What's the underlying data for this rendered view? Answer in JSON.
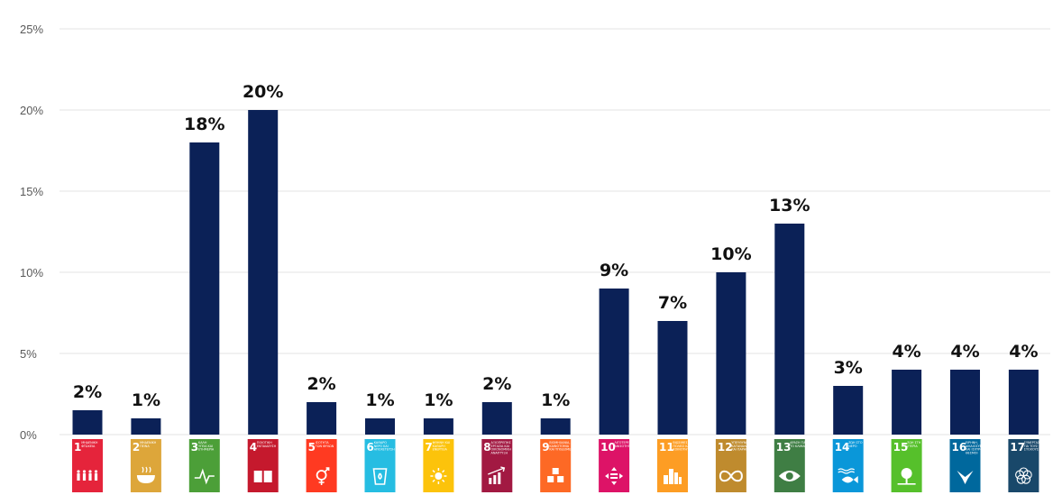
{
  "chart_data": {
    "type": "bar",
    "title": "",
    "xlabel": "",
    "ylabel": "",
    "ylim": [
      0,
      25
    ],
    "y_ticks": [
      "0%",
      "5%",
      "10%",
      "15%",
      "20%",
      "25%"
    ],
    "y_tick_values": [
      0,
      5,
      10,
      15,
      20,
      25
    ],
    "grid": true,
    "legend": "none",
    "bar_color": "#0b2157",
    "values": [
      1.5,
      1,
      18,
      20,
      2,
      1,
      1,
      2,
      1,
      9,
      7,
      10,
      13,
      3,
      4,
      4,
      4
    ],
    "data_labels": [
      "2%",
      "1%",
      "18%",
      "20%",
      "2%",
      "1%",
      "1%",
      "2%",
      "1%",
      "9%",
      "7%",
      "10%",
      "13%",
      "3%",
      "4%",
      "4%",
      "4%"
    ],
    "categories": [
      {
        "num": "1",
        "lines": [
          "ΜΗΔΕΝΙΚΗ",
          "ΦΤΩΧΕΙΑ"
        ],
        "color": "#e5243b",
        "icon": "people-icon"
      },
      {
        "num": "2",
        "lines": [
          "ΜΗΔΕΝΙΚΗ",
          "ΠΕΙΝΑ"
        ],
        "color": "#dda63a",
        "icon": "bowl-icon"
      },
      {
        "num": "3",
        "lines": [
          "ΚΑΛΗ",
          "ΥΓΕΙΑ ΚΑΙ",
          "ΕΥΗΜΕΡΙΑ"
        ],
        "color": "#4c9f38",
        "icon": "heartbeat-icon"
      },
      {
        "num": "4",
        "lines": [
          "ΠΟΙΟΤΙΚΗ",
          "ΕΚΠΑΙΔΕΥΣΗ"
        ],
        "color": "#c5192d",
        "icon": "book-icon"
      },
      {
        "num": "5",
        "lines": [
          "ΙΣΟΤΗΤΑ",
          "ΤΩΝ ΦΥΛΩΝ"
        ],
        "color": "#ff3a21",
        "icon": "gender-icon"
      },
      {
        "num": "6",
        "lines": [
          "ΚΑΘΑΡΟ",
          "ΝΕΡΟ ΚΑΙ",
          "ΑΠΟΧΕΤΕΥΣΗ"
        ],
        "color": "#26bde2",
        "icon": "water-glass-icon"
      },
      {
        "num": "7",
        "lines": [
          "ΦΘΗΝΗ ΚΑΙ",
          "ΚΑΘΑΡΗ",
          "ΕΝΕΡΓΕΙΑ"
        ],
        "color": "#fcc30b",
        "icon": "sun-icon"
      },
      {
        "num": "8",
        "lines": [
          "ΑΞΙΟΠΡΕΠΗΣ",
          "ΕΡΓΑΣΙΑ ΚΑΙ",
          "ΟΙΚΟΝΟΜΙΚΗ",
          "ΑΝΑΠΤΥΞΗ"
        ],
        "color": "#a21942",
        "icon": "growth-chart-icon"
      },
      {
        "num": "9",
        "lines": [
          "ΒΙΟΜΗΧΑΝΙΑ,",
          "ΚΑΙΝΟΤΟΜΙΑ",
          "ΚΑΙ ΥΠΟΔΟΜΕΣ"
        ],
        "color": "#fd6925",
        "icon": "cubes-icon"
      },
      {
        "num": "10",
        "lines": [
          "ΛΙΓΟΤΕΡΕΣ",
          "ΑΝΙΣΟΤΗΤΕΣ"
        ],
        "color": "#dd1367",
        "icon": "equality-icon"
      },
      {
        "num": "11",
        "lines": [
          "ΒΙΩΣΙΜΕΣ",
          "ΠΟΛΕΙΣ ΚΑΙ",
          "ΚΟΙΝΟΤΗΤΕΣ"
        ],
        "color": "#fd9d24",
        "icon": "city-icon"
      },
      {
        "num": "12",
        "lines": [
          "ΥΠΕΥΘΥΝΗ",
          "ΚΑΤΑΝΑΛΩΣΗ",
          "ΚΑΙ ΠΑΡΑΓΩΓΗ"
        ],
        "color": "#bf8b2e",
        "icon": "infinity-icon"
      },
      {
        "num": "13",
        "lines": [
          "ΔΡΑΣΗ ΓΙΑ",
          "ΤΟ ΚΛΙΜΑ"
        ],
        "color": "#3f7e44",
        "icon": "eye-globe-icon"
      },
      {
        "num": "14",
        "lines": [
          "ΖΩΗ ΣΤΟ",
          "ΝΕΡΟ"
        ],
        "color": "#0a97d9",
        "icon": "fish-icon"
      },
      {
        "num": "15",
        "lines": [
          "ΖΩΗ ΣΤΗ",
          "ΣΤΕΡΙΑ"
        ],
        "color": "#56c02b",
        "icon": "tree-icon"
      },
      {
        "num": "16",
        "lines": [
          "ΕΙΡΗΝΗ,",
          "ΔΙΚΑΙΟΣΥΝΗ",
          "ΚΑΙ ΙΣΧΥΡΟΙ",
          "ΘΕΣΜΟΙ"
        ],
        "color": "#00689d",
        "icon": "dove-icon"
      },
      {
        "num": "17",
        "lines": [
          "ΣΥΝΕΡΓΑΣΙΑ",
          "ΓΙΑ ΤΟΥΣ",
          "ΣΤΟΧΟΥΣ"
        ],
        "color": "#19486a",
        "icon": "flower-rings-icon"
      }
    ]
  }
}
